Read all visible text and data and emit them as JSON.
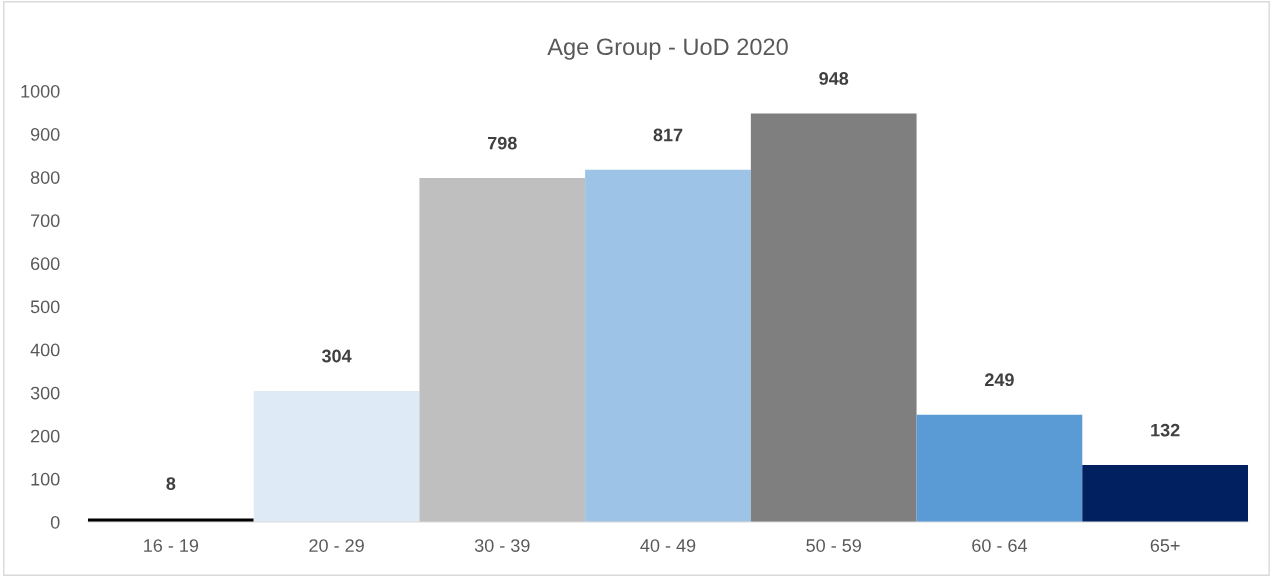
{
  "chart_data": {
    "type": "bar",
    "title": "Age Group - UoD 2020",
    "categories": [
      "16 - 19",
      "20 - 29",
      "30 - 39",
      "40 - 49",
      "50 - 59",
      "60 - 64",
      "65+"
    ],
    "values": [
      8,
      304,
      798,
      817,
      948,
      249,
      132
    ],
    "colors": [
      "#000000",
      "#deebf7",
      "#bfbfbf",
      "#9dc3e6",
      "#7f7f7f",
      "#5b9bd5",
      "#002060"
    ],
    "ylim": [
      0,
      1000
    ],
    "yticks": [
      0,
      100,
      200,
      300,
      400,
      500,
      600,
      700,
      800,
      900,
      1000
    ],
    "grid": false,
    "data_labels": true
  }
}
